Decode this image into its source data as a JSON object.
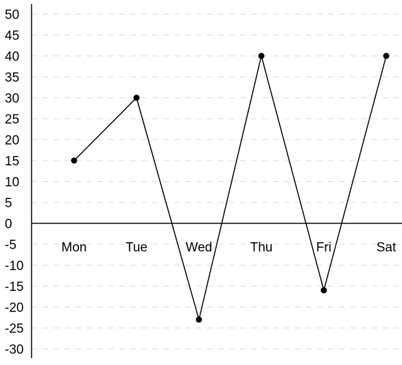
{
  "chart_data": {
    "type": "line",
    "title": "",
    "xlabel": "",
    "ylabel": "",
    "categories": [
      "Mon",
      "Tue",
      "Wed",
      "Thu",
      "Fri",
      "Sat"
    ],
    "series": [
      {
        "values": [
          15,
          30,
          -23,
          40,
          -16,
          40
        ],
        "color": "#000000"
      }
    ],
    "ylim": [
      -30,
      50
    ],
    "yticks": [
      50,
      45,
      40,
      35,
      30,
      25,
      20,
      15,
      10,
      5,
      0,
      -5,
      -10,
      -15,
      -20,
      -25,
      -30
    ],
    "grid": true,
    "grid_style": "dashed",
    "grid_color": "#d9d9d9",
    "axis_color": "#000000",
    "legend": "none"
  }
}
